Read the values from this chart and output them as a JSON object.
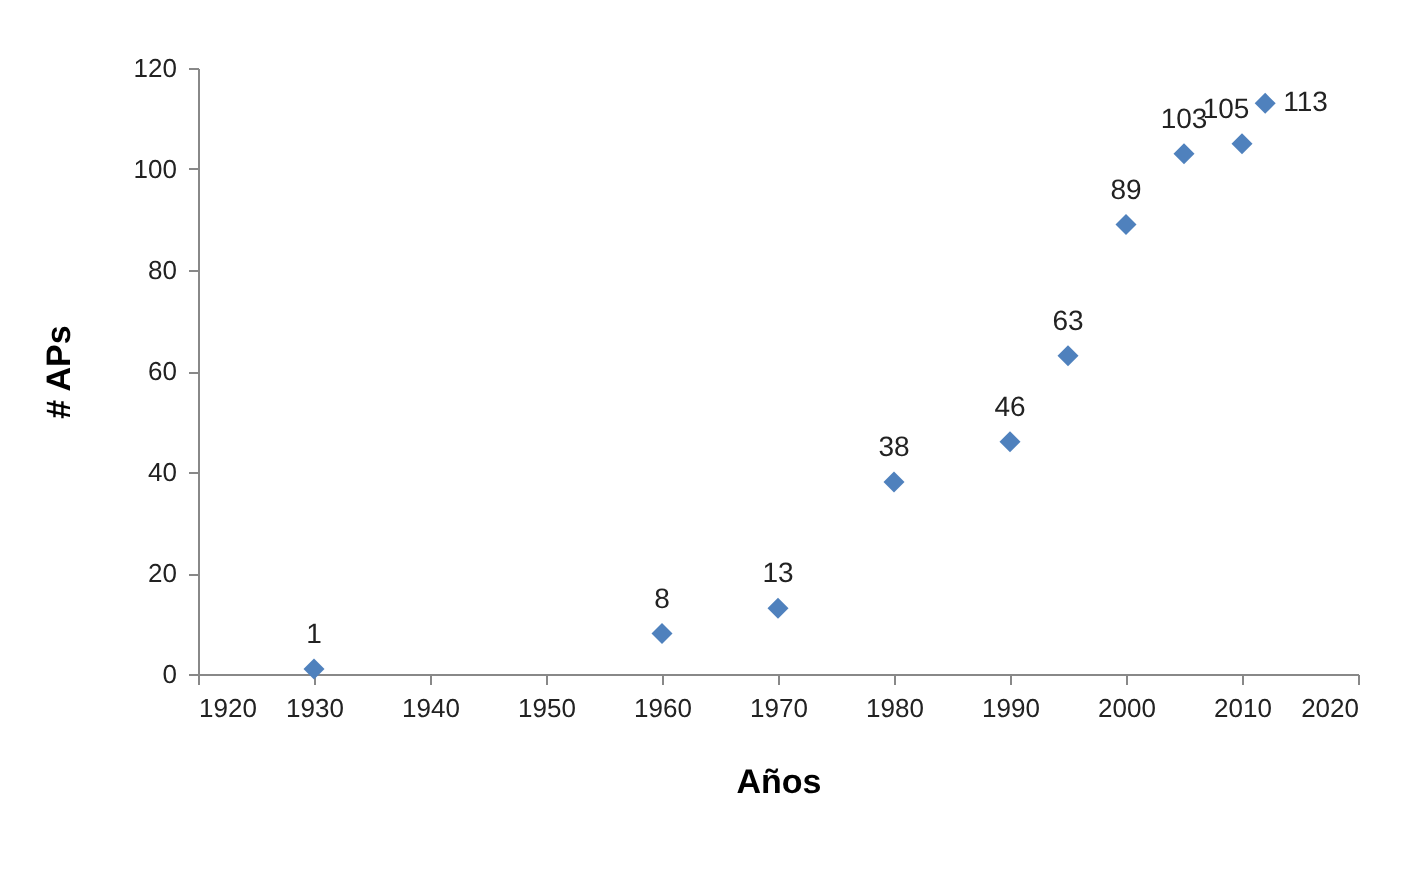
{
  "chart_data": {
    "type": "scatter",
    "xlabel": "Años",
    "ylabel": "# APs",
    "x": [
      1930,
      1960,
      1970,
      1980,
      1990,
      1995,
      2000,
      2005,
      2010,
      2012
    ],
    "series": [
      {
        "color": "#4f81bd",
        "values": [
          1,
          8,
          13,
          38,
          46,
          63,
          89,
          103,
          105,
          113
        ]
      }
    ],
    "xlim": [
      1920,
      2020
    ],
    "xticks": [
      1920,
      1930,
      1940,
      1950,
      1960,
      1970,
      1980,
      1990,
      2000,
      2010,
      2020
    ],
    "ylim": [
      0,
      120
    ],
    "yticks": [
      0,
      20,
      40,
      60,
      80,
      100,
      120
    ],
    "marker": "diamond",
    "data_labels": true,
    "grid": false,
    "legend": false
  }
}
